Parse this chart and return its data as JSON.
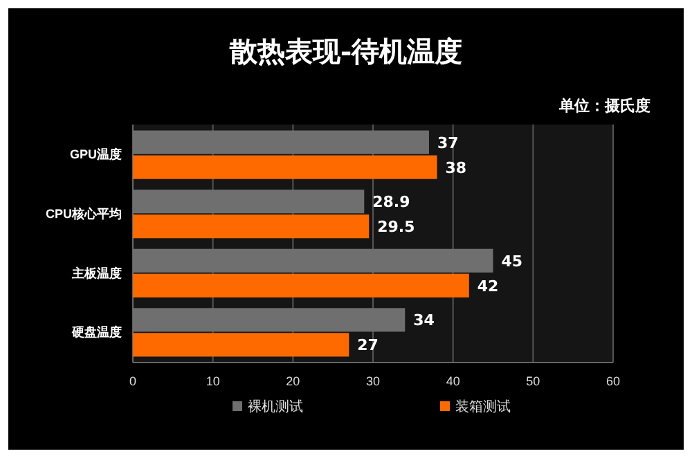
{
  "chart_data": {
    "type": "bar",
    "orientation": "horizontal",
    "title": "散热表现-待机温度",
    "annotations": [
      "单位：摄氏度"
    ],
    "categories": [
      "GPU温度",
      "CPU核心平均",
      "主板温度",
      "硬盘温度"
    ],
    "series": [
      {
        "name": "裸机测试",
        "color": "#6f6f6f",
        "values": [
          37,
          28.9,
          45,
          34
        ]
      },
      {
        "name": "装箱测试",
        "color": "#ff6a00",
        "values": [
          38,
          29.5,
          42,
          27
        ]
      }
    ],
    "xlim": [
      0,
      60
    ],
    "xticks": [
      0,
      10,
      20,
      30,
      40,
      50,
      60
    ],
    "grid": "x",
    "legend": "bottom",
    "data_labels": true
  }
}
